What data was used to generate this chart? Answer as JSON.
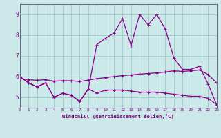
{
  "xlabel": "Windchill (Refroidissement éolien,°C)",
  "bg_color": "#cce8e8",
  "line_color": "#880088",
  "grid_color": "#99cccc",
  "axis_color": "#666688",
  "x_values": [
    0,
    1,
    2,
    3,
    4,
    5,
    6,
    7,
    8,
    9,
    10,
    11,
    12,
    13,
    14,
    15,
    16,
    17,
    18,
    19,
    20,
    21,
    22,
    23
  ],
  "curve_jagged": [
    6.0,
    5.7,
    5.5,
    5.7,
    5.0,
    5.2,
    5.1,
    4.8,
    5.4,
    5.2,
    5.35,
    5.35,
    5.35,
    5.3,
    5.25,
    5.25,
    5.25,
    5.2,
    5.15,
    5.1,
    5.05,
    5.05,
    4.95,
    4.65
  ],
  "curve_peak": [
    6.0,
    5.7,
    5.5,
    5.7,
    5.0,
    5.2,
    5.1,
    4.8,
    5.4,
    7.55,
    7.85,
    8.1,
    8.8,
    7.5,
    9.0,
    8.5,
    9.0,
    8.3,
    6.9,
    6.35,
    6.35,
    6.5,
    5.65,
    4.65
  ],
  "curve_linear": [
    5.9,
    5.85,
    5.82,
    5.85,
    5.78,
    5.8,
    5.8,
    5.76,
    5.83,
    5.9,
    5.95,
    6.0,
    6.05,
    6.08,
    6.12,
    6.15,
    6.18,
    6.22,
    6.28,
    6.25,
    6.28,
    6.32,
    6.1,
    5.7
  ],
  "ylim": [
    4.5,
    9.5
  ],
  "yticks": [
    5,
    6,
    7,
    8,
    9
  ],
  "xlim": [
    0,
    23
  ]
}
